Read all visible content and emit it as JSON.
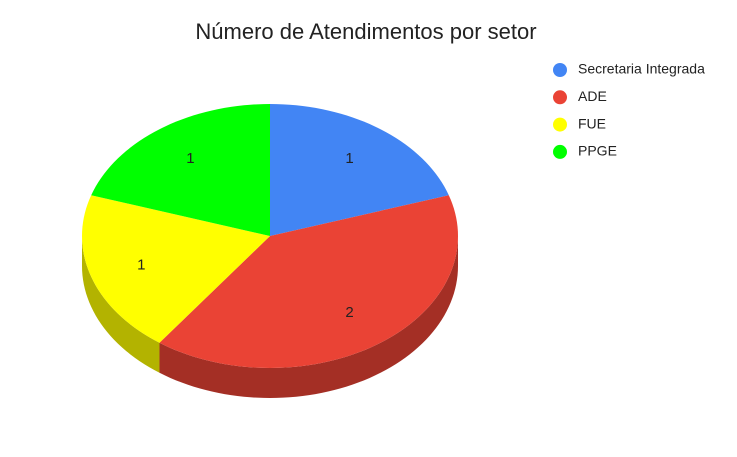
{
  "chart_data": {
    "type": "pie",
    "title": "Número de Atendimentos por setor",
    "categories": [
      "Secretaria Integrada",
      "ADE",
      "FUE",
      "PPGE"
    ],
    "values": [
      1,
      2,
      1,
      1
    ],
    "colors": [
      "#4285f4",
      "#ea4335",
      "#ffff00",
      "#00ff00"
    ],
    "is3D": true,
    "legend": "right"
  }
}
